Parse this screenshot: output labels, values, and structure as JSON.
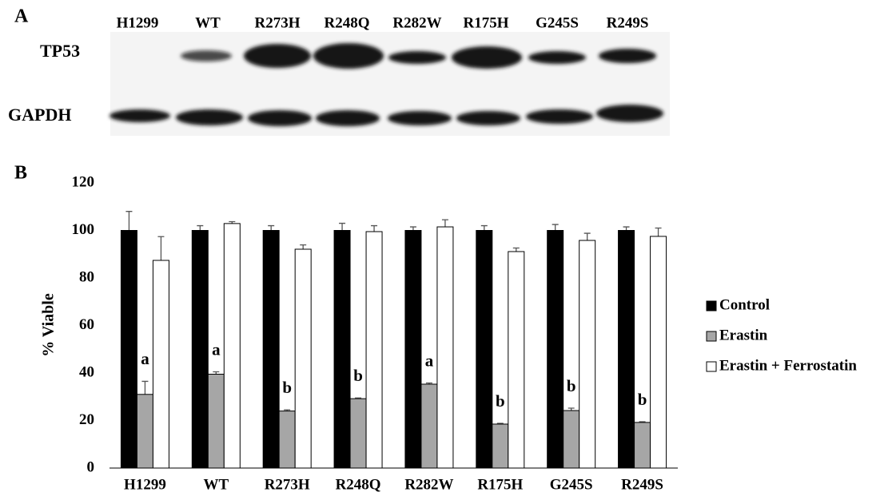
{
  "panel_a": {
    "label": "A",
    "lanes": [
      "H1299",
      "WT",
      "R273H",
      "R248Q",
      "R282W",
      "R175H",
      "G245S",
      "R249S"
    ],
    "rows": [
      "TP53",
      "GAPDH"
    ]
  },
  "chart_data": {
    "type": "bar",
    "panel_label": "B",
    "y_label": "% Viable",
    "categories": [
      "H1299",
      "WT",
      "R273H",
      "R248Q",
      "R282W",
      "R175H",
      "G245S",
      "R249S"
    ],
    "series": [
      {
        "name": "Control",
        "color": "#000000",
        "values": [
          100,
          100,
          100,
          100,
          100,
          100,
          100,
          100
        ],
        "errors": [
          8,
          2,
          2,
          3,
          1.5,
          2,
          2.5,
          1.5
        ]
      },
      {
        "name": "Erastin",
        "color": "#a6a6a6",
        "values": [
          31,
          39.5,
          24,
          29.2,
          35.3,
          18.5,
          24.2,
          19.2
        ],
        "errors": [
          5.5,
          1,
          0.5,
          0.3,
          0.5,
          0.3,
          1,
          0.3
        ]
      },
      {
        "name": "Erastin + Ferrostatin",
        "color": "#ffffff",
        "values": [
          87.4,
          102.9,
          92.1,
          99.5,
          101.5,
          91.1,
          95.8,
          97.5
        ],
        "errors": [
          10,
          0.8,
          1.8,
          2.5,
          3,
          1.5,
          3,
          3.5
        ]
      }
    ],
    "annotations": [
      "a",
      "a",
      "b",
      "b",
      "a",
      "b",
      "b",
      "b"
    ],
    "ylim": [
      0,
      120
    ],
    "yticks": [
      0,
      20,
      40,
      60,
      80,
      100,
      120
    ],
    "grid": false
  }
}
